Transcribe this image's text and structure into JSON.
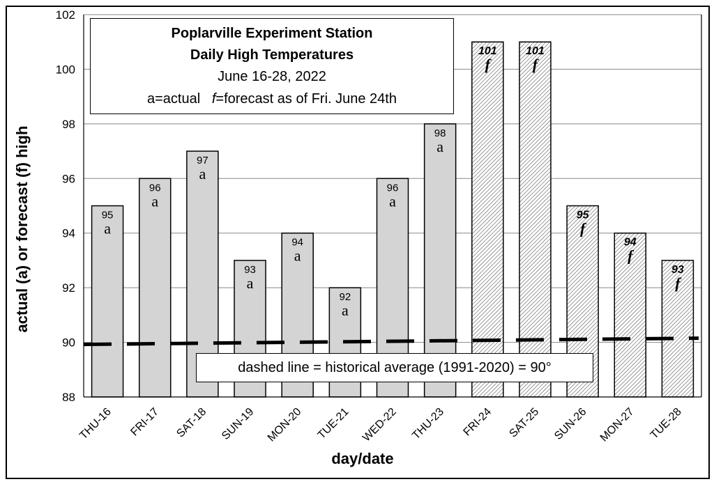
{
  "chart_data": {
    "type": "bar",
    "title_lines": [
      "Poplarville Experiment Station",
      "Daily High Temperatures",
      "June 16-28, 2022"
    ],
    "legend_note": {
      "actual": "a=actual",
      "forecast_symbol": "f",
      "forecast_text": "=forecast as of Fri. June 24th"
    },
    "categories": [
      "THU-16",
      "FRI-17",
      "SAT-18",
      "SUN-19",
      "MON-20",
      "TUE-21",
      "WED-22",
      "THU-23",
      "FRI-24",
      "SAT-25",
      "SUN-26",
      "MON-27",
      "TUE-28"
    ],
    "values": [
      95,
      96,
      97,
      93,
      94,
      92,
      96,
      98,
      101,
      101,
      95,
      94,
      93
    ],
    "kind": [
      "a",
      "a",
      "a",
      "a",
      "a",
      "a",
      "a",
      "a",
      "f",
      "f",
      "f",
      "f",
      "f"
    ],
    "value_labels": [
      "95",
      "96",
      "97",
      "93",
      "94",
      "92",
      "96",
      "98",
      "101",
      "101",
      "95",
      "94",
      "93"
    ],
    "ylim": [
      88,
      102
    ],
    "yticks": [
      "88",
      "90",
      "92",
      "94",
      "96",
      "98",
      "100",
      "102"
    ],
    "ylabel": "actual (a) or forecast (f) high",
    "xlabel": "day/date",
    "reference_line": {
      "value": 90,
      "label": "dashed line = historical average (1991-2020) = 90°"
    },
    "colors": {
      "actual_fill": "#d4d4d4",
      "forecast_hatch": "#555555",
      "grid": "#888888",
      "bar_stroke": "#000000"
    },
    "grid": true
  }
}
